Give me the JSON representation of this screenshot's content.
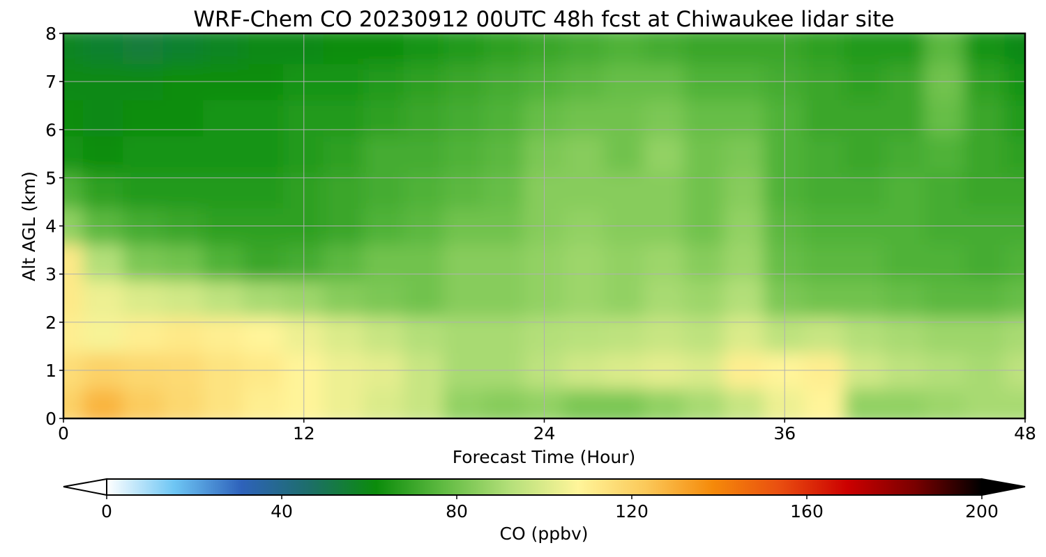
{
  "chart_data": {
    "type": "heatmap",
    "title": "WRF-Chem CO  20230912 00UTC 48h fcst at Chiwaukee lidar site",
    "xlabel": "Forecast Time (Hour)",
    "ylabel": "Alt AGL (km)",
    "xlim": [
      0,
      48
    ],
    "ylim": [
      0,
      8
    ],
    "xticks": [
      "0",
      "12",
      "24",
      "36",
      "48"
    ],
    "yticks": [
      "0",
      "1",
      "2",
      "3",
      "4",
      "5",
      "6",
      "7",
      "8"
    ],
    "grid": true,
    "colorbar": {
      "label": "CO  (ppbv)",
      "min": 0,
      "max": 200,
      "ticks": [
        "0",
        "40",
        "80",
        "120",
        "160",
        "200"
      ],
      "extend": "both",
      "colors": [
        "#ffffff",
        "#6ec6f4",
        "#2e62bb",
        "#1d6e6a",
        "#0b8c0b",
        "#60bb42",
        "#b5e07a",
        "#fff59a",
        "#fbc95a",
        "#f58a0a",
        "#e94e10",
        "#cc0000",
        "#7a0000",
        "#000000"
      ]
    },
    "heights_km": [
      0.25,
      1.0,
      1.75,
      2.5,
      3.25,
      4.0,
      4.75,
      5.5,
      6.25,
      7.0,
      7.75
    ],
    "hours": [
      0,
      2,
      4,
      6,
      8,
      10,
      12,
      14,
      16,
      18,
      20,
      22,
      24,
      26,
      28,
      30,
      32,
      34,
      36,
      38,
      40,
      42,
      44,
      46,
      48
    ],
    "values_ppbv": [
      [
        120,
        128,
        122,
        118,
        114,
        110,
        108,
        104,
        100,
        96,
        86,
        84,
        86,
        82,
        82,
        86,
        90,
        96,
        104,
        108,
        86,
        86,
        88,
        90,
        90
      ],
      [
        116,
        120,
        118,
        117,
        114,
        112,
        108,
        104,
        102,
        96,
        90,
        90,
        94,
        98,
        100,
        102,
        100,
        110,
        108,
        110,
        98,
        94,
        92,
        90,
        94
      ],
      [
        110,
        106,
        110,
        112,
        110,
        108,
        104,
        100,
        96,
        92,
        90,
        90,
        92,
        93,
        94,
        96,
        94,
        100,
        94,
        96,
        92,
        90,
        88,
        88,
        90
      ],
      [
        112,
        104,
        100,
        98,
        94,
        90,
        88,
        84,
        82,
        80,
        84,
        84,
        86,
        88,
        86,
        90,
        88,
        92,
        82,
        80,
        80,
        78,
        76,
        76,
        78
      ],
      [
        112,
        92,
        82,
        80,
        74,
        70,
        72,
        76,
        80,
        80,
        84,
        84,
        86,
        88,
        86,
        88,
        84,
        88,
        78,
        76,
        76,
        74,
        74,
        72,
        74
      ],
      [
        86,
        76,
        72,
        70,
        68,
        68,
        68,
        70,
        74,
        76,
        80,
        80,
        84,
        86,
        84,
        84,
        80,
        86,
        76,
        74,
        74,
        74,
        72,
        72,
        72
      ],
      [
        74,
        68,
        66,
        66,
        66,
        66,
        68,
        70,
        72,
        74,
        76,
        78,
        84,
        84,
        84,
        84,
        80,
        84,
        74,
        72,
        72,
        74,
        72,
        70,
        70
      ],
      [
        64,
        62,
        64,
        64,
        64,
        64,
        66,
        68,
        72,
        72,
        74,
        76,
        82,
        84,
        80,
        86,
        80,
        82,
        74,
        72,
        70,
        72,
        74,
        70,
        68
      ],
      [
        62,
        60,
        62,
        62,
        64,
        64,
        66,
        66,
        68,
        70,
        72,
        74,
        78,
        80,
        80,
        82,
        78,
        78,
        74,
        70,
        70,
        70,
        78,
        70,
        66
      ],
      [
        60,
        60,
        60,
        62,
        62,
        62,
        64,
        64,
        66,
        68,
        70,
        72,
        74,
        76,
        78,
        78,
        74,
        74,
        72,
        70,
        68,
        70,
        80,
        68,
        64
      ],
      [
        58,
        56,
        54,
        56,
        58,
        60,
        60,
        62,
        62,
        64,
        66,
        68,
        70,
        72,
        74,
        72,
        70,
        70,
        70,
        68,
        66,
        66,
        76,
        64,
        60
      ]
    ]
  }
}
